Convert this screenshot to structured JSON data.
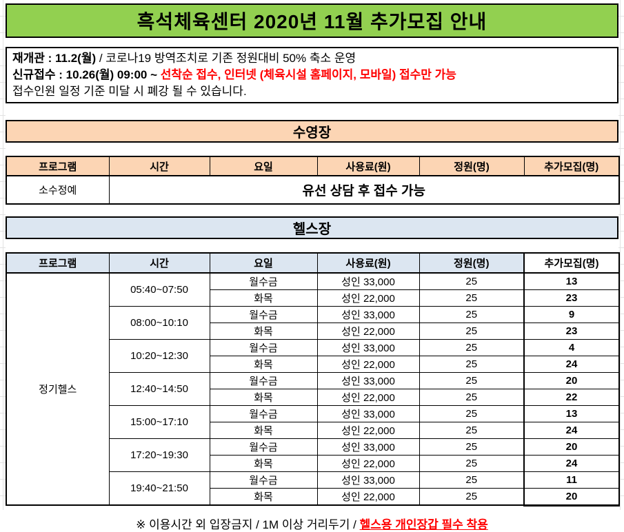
{
  "title": "흑석체육센터 2020년 11월 추가모집 안내",
  "notice": {
    "line1_bold": "재개관 : 11.2(월)",
    "line1_rest": " / 코로나19 방역조치로 기존 정원대비 50% 축소 운영",
    "line2_bold": "신규접수 : 10.26(월) 09:00 ~ ",
    "line2_red": "선착순 접수, 인터넷 (체육시설 홈페이지, 모바일) 접수만 가능",
    "line3": "접수인원 일정 기준 미달 시 폐강 될 수 있습니다."
  },
  "swim": {
    "section_title": "수영장",
    "headers": [
      "프로그램",
      "시간",
      "요일",
      "사용료(원)",
      "정원(명)",
      "추가모집(명)"
    ],
    "program": "소수정예",
    "note": "유선 상담 후 접수 가능"
  },
  "gym": {
    "section_title": "헬스장",
    "headers": [
      "프로그램",
      "시간",
      "요일",
      "사용료(원)",
      "정원(명)",
      "추가모집(명)"
    ],
    "program": "정기헬스",
    "slots": [
      {
        "time": "05:40~07:50",
        "rows": [
          {
            "days": "월수금",
            "fee": "성인 33,000",
            "capacity": "25",
            "extra": "13"
          },
          {
            "days": "화목",
            "fee": "성인 22,000",
            "capacity": "25",
            "extra": "23"
          }
        ]
      },
      {
        "time": "08:00~10:10",
        "rows": [
          {
            "days": "월수금",
            "fee": "성인 33,000",
            "capacity": "25",
            "extra": "9"
          },
          {
            "days": "화목",
            "fee": "성인 22,000",
            "capacity": "25",
            "extra": "23"
          }
        ]
      },
      {
        "time": "10:20~12:30",
        "rows": [
          {
            "days": "월수금",
            "fee": "성인 33,000",
            "capacity": "25",
            "extra": "4"
          },
          {
            "days": "화목",
            "fee": "성인 22,000",
            "capacity": "25",
            "extra": "24"
          }
        ]
      },
      {
        "time": "12:40~14:50",
        "rows": [
          {
            "days": "월수금",
            "fee": "성인 33,000",
            "capacity": "25",
            "extra": "20"
          },
          {
            "days": "화목",
            "fee": "성인 22,000",
            "capacity": "25",
            "extra": "22"
          }
        ]
      },
      {
        "time": "15:00~17:10",
        "rows": [
          {
            "days": "월수금",
            "fee": "성인 33,000",
            "capacity": "25",
            "extra": "13"
          },
          {
            "days": "화목",
            "fee": "성인 22,000",
            "capacity": "25",
            "extra": "24"
          }
        ]
      },
      {
        "time": "17:20~19:30",
        "rows": [
          {
            "days": "월수금",
            "fee": "성인 33,000",
            "capacity": "25",
            "extra": "20"
          },
          {
            "days": "화목",
            "fee": "성인 22,000",
            "capacity": "25",
            "extra": "24"
          }
        ]
      },
      {
        "time": "19:40~21:50",
        "rows": [
          {
            "days": "월수금",
            "fee": "성인 33,000",
            "capacity": "25",
            "extra": "11"
          },
          {
            "days": "화목",
            "fee": "성인 22,000",
            "capacity": "25",
            "extra": "20"
          }
        ]
      }
    ]
  },
  "footer": {
    "black": "※ 이용시간 외 입장금지 / 1M 이상 거리두기 / ",
    "red": "헬스용 개인장갑 필수 착용"
  },
  "colors": {
    "title_bg": "#92D050",
    "swim_bg": "#FCD5B4",
    "gym_bg": "#DCE6F1",
    "accent_red": "#FF0000",
    "border": "#000000"
  }
}
